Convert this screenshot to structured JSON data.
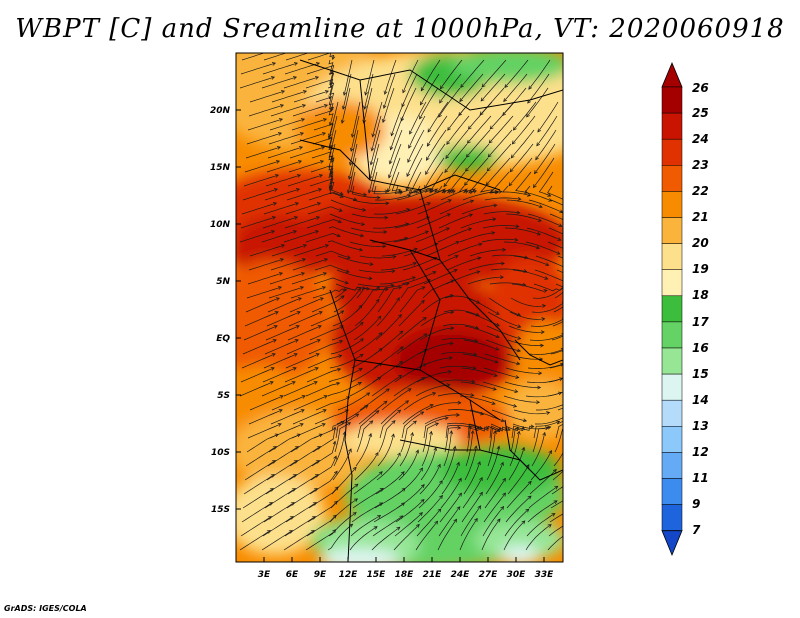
{
  "title": "WBPT [C] and Sreamline at 1000hPa, VT: 2020060918",
  "credit": "GrADS: IGES/COLA",
  "map": {
    "lat_labels": [
      "20N",
      "15N",
      "10N",
      "5N",
      "EQ",
      "5S",
      "10S",
      "15S"
    ],
    "lon_labels": [
      "3E",
      "6E",
      "9E",
      "12E",
      "15E",
      "18E",
      "21E",
      "24E",
      "27E",
      "30E",
      "33E"
    ]
  },
  "colorbar": {
    "labels": [
      "26",
      "25",
      "24",
      "23",
      "22",
      "21",
      "20",
      "19",
      "18",
      "17",
      "16",
      "15",
      "14",
      "13",
      "12",
      "11",
      "9",
      "7"
    ],
    "colors": [
      "#a50000",
      "#c81400",
      "#e03200",
      "#f05a00",
      "#f88c00",
      "#fab43c",
      "#fde08c",
      "#fff0b4",
      "#3cbe3c",
      "#64d264",
      "#96e696",
      "#dcf5f0",
      "#b4dcfa",
      "#8cc8fa",
      "#64aaf5",
      "#3c8cf0",
      "#1e64dc",
      "#1446c8"
    ]
  }
}
